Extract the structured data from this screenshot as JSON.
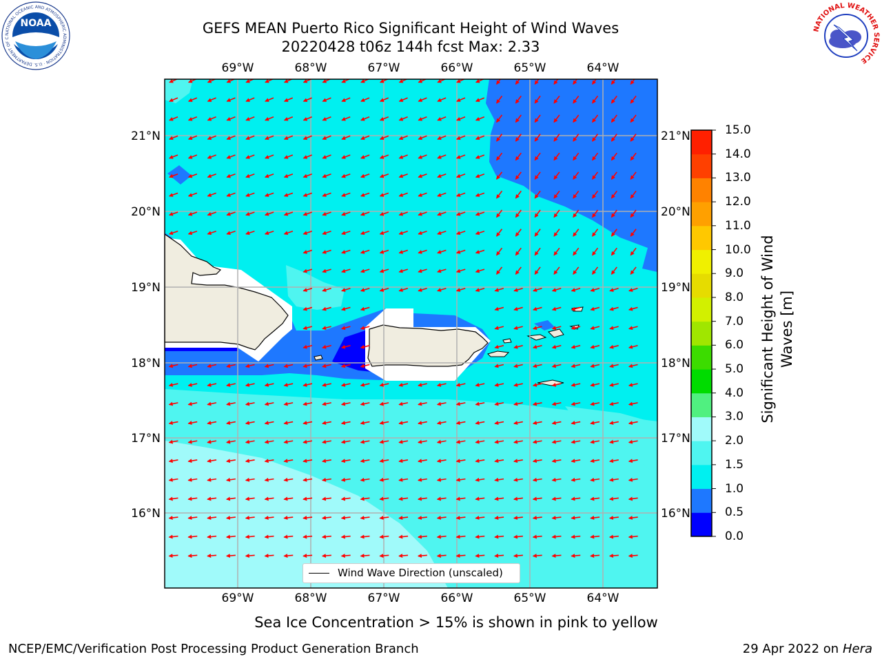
{
  "title": {
    "line1": "GEFS MEAN Puerto Rico Significant Height of Wind Waves",
    "line2": "20220428 t06z 144h fcst   Max: 2.33"
  },
  "logos": {
    "noaa_inner": "NOAA",
    "noaa_ring": "NATIONAL OCEANIC AND ATMOSPHERIC ADMINISTRATION · U.S. DEPARTMENT OF COMMERCE",
    "nws_ring": "NATIONAL WEATHER SERVICE"
  },
  "map": {
    "lon_labels": [
      "69°W",
      "68°W",
      "67°W",
      "66°W",
      "65°W",
      "64°W"
    ],
    "lat_labels": [
      "21°N",
      "20°N",
      "19°N",
      "18°N",
      "17°N",
      "16°N"
    ],
    "legend_label": "Wind Wave Direction (unscaled)",
    "arrow_color": "#ff0000"
  },
  "colorbar": {
    "title": "Significant Height of Wind Waves [m]",
    "ticks": [
      "15.0",
      "14.0",
      "13.0",
      "12.0",
      "11.0",
      "10.0",
      "9.0",
      "8.0",
      "7.0",
      "6.0",
      "5.0",
      "4.0",
      "3.0",
      "2.0",
      "1.5",
      "1.0",
      "0.5",
      "0.0"
    ],
    "colors_bottom_to_top": [
      "#0000ff",
      "#1e78ff",
      "#00f0f0",
      "#4ff5f0",
      "#a0fafa",
      "#50f080",
      "#00dc00",
      "#3cdc00",
      "#a0e600",
      "#d2f000",
      "#e6dc00",
      "#f0f000",
      "#ffc800",
      "#ffa000",
      "#ff8200",
      "#ff4000",
      "#ff2000"
    ]
  },
  "sea_ice_note": "Sea Ice Concentration > 15% is shown in pink to yellow",
  "footer": {
    "left": "NCEP/EMC/Verification Post Processing Product Generation Branch",
    "right_date": "29 Apr 2022 on ",
    "right_host": "Hera"
  }
}
